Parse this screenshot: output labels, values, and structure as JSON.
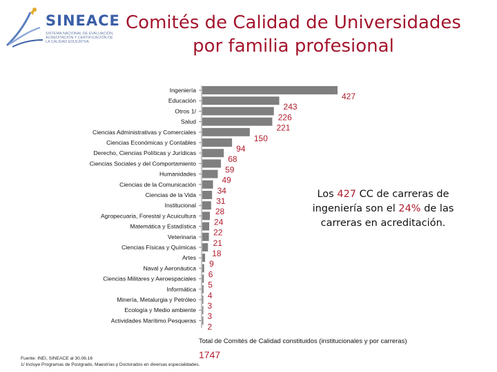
{
  "logo": {
    "name": "SINEACE",
    "subtitle": "SISTEMA NACIONAL DE EVALUACIÓN, ACREDITACIÓN Y CERTIFICACIÓN DE LA CALIDAD EDUCATIVA"
  },
  "title_line1": "Comités de Calidad de Universidades",
  "title_line2": "por familia profesional",
  "chart_data": {
    "type": "bar",
    "orientation": "horizontal",
    "categories": [
      "Ingeniería",
      "Educación",
      "Otros 1/",
      "Salud",
      "Ciencias Administrativas y Comerciales",
      "Ciencias Económicas y Contables",
      "Derecho, Ciencias Políticas y Jurídicas",
      "Ciencias Sociales y del Comportamiento",
      "Humanidades",
      "Ciencias de la Comunicación",
      "Ciencias de la Vida",
      "Institucional",
      "Agropecuaria, Forestal y Acuicultura",
      "Matemática y Estadística",
      "Veterinaria",
      "Ciencias Físicas y Químicas",
      "Artes",
      "Naval y Aeronáutica",
      "Ciencias Militares y Aeroespaciales",
      "Informática",
      "Minería, Metalurgia y Petróleo",
      "Ecología y Medio ambiente",
      "Actividades Marítimo Pesqueras"
    ],
    "values": [
      427,
      243,
      226,
      221,
      150,
      94,
      68,
      59,
      49,
      34,
      31,
      28,
      24,
      22,
      21,
      18,
      9,
      6,
      5,
      4,
      3,
      3,
      2
    ],
    "colors": {
      "bar": "#7f7f7f",
      "value_label": "#b01c2e",
      "label": "#111111"
    },
    "xlim": [
      0,
      427
    ],
    "grid": false,
    "legend": "none"
  },
  "annotation": {
    "line1_pre": "Los ",
    "line1_hi": "427",
    "line1_post": " CC de carreras de",
    "line2_pre": "ingeniería son el ",
    "line2_hi": "24%",
    "line2_post": " de las",
    "line3": "carreras en acreditación."
  },
  "total_label": "Total de Comités de Calidad constituidos (institucionales y por carreras)",
  "total_value": "1747",
  "footnote_line1": "Fuente: INEI, SINEACE al 30.06.16",
  "footnote_line2": "1/ Incluye Programas de Postgrado, Maestrías y Doctorados en diversas especialidades."
}
